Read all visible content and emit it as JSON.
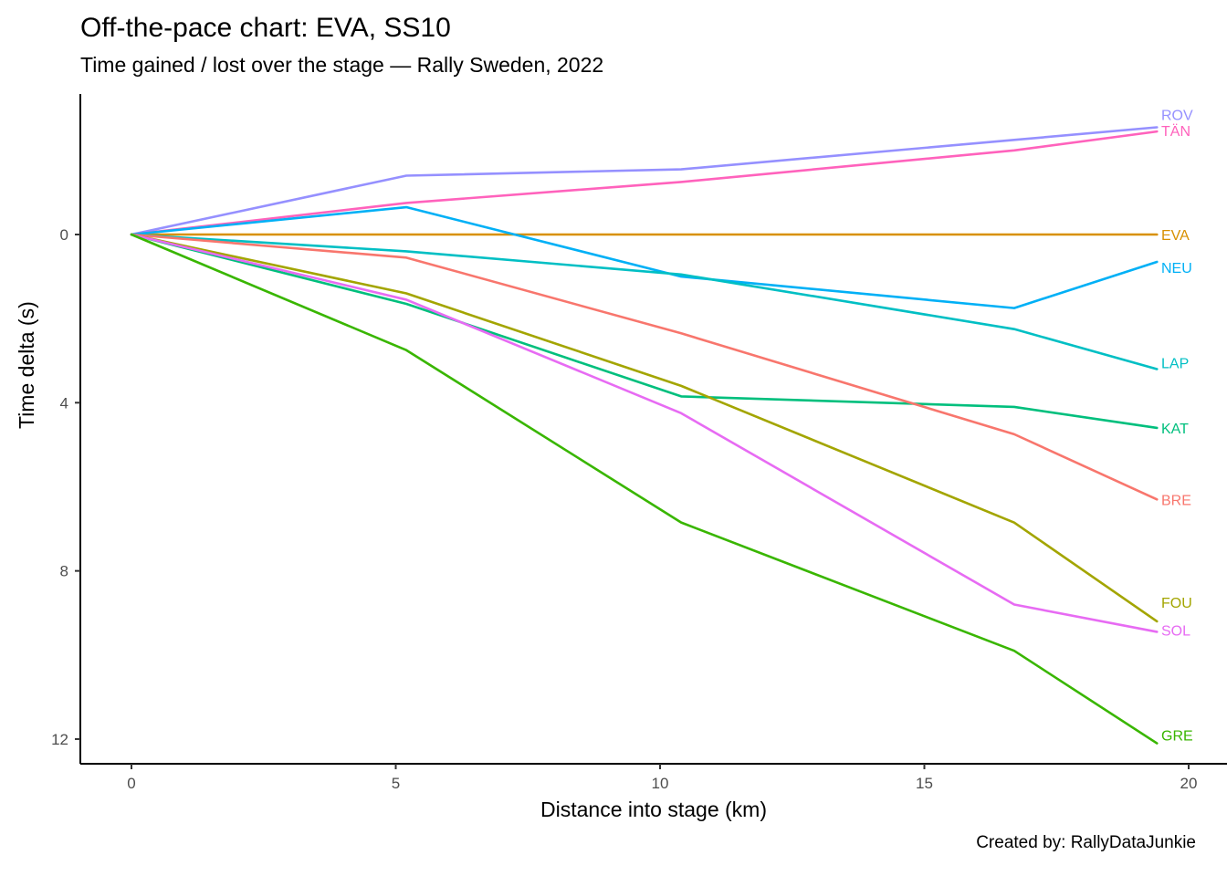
{
  "header": {
    "title": "Off-the-pace chart: EVA, SS10",
    "subtitle": "Time gained / lost over the stage — Rally Sweden, 2022"
  },
  "caption": "Created by: RallyDataJunkie",
  "chart_data": {
    "type": "line",
    "title": "Off-the-pace chart: EVA, SS10",
    "subtitle": "Time gained / lost over the stage — Rally Sweden, 2022",
    "xlabel": "Distance into stage (km)",
    "ylabel": "Time delta (s)",
    "x": [
      0,
      5.2,
      10.4,
      16.7,
      19.4
    ],
    "x_ticks": [
      "0",
      "5",
      "10",
      "15",
      "20"
    ],
    "x_tick_values": [
      0,
      5,
      10,
      15,
      20
    ],
    "y_ticks": [
      "0",
      "4",
      "8",
      "12"
    ],
    "y_tick_values": [
      0,
      4,
      8,
      12
    ],
    "xlim": [
      0,
      20.7
    ],
    "ylim": [
      -3.3,
      12.6
    ],
    "y_axis_inverted_note": "positive delta = time lost, plotted downward",
    "grid": false,
    "legend_position": "line-end-labels-right",
    "series": [
      {
        "name": "ROV",
        "color": "#9590FF",
        "values": [
          0,
          -1.4,
          -1.55,
          -2.25,
          -2.55
        ]
      },
      {
        "name": "TÄN",
        "color": "#FF62BC",
        "values": [
          0,
          -0.75,
          -1.25,
          -2.0,
          -2.45
        ]
      },
      {
        "name": "EVA",
        "color": "#D89000",
        "values": [
          0,
          0,
          0,
          0,
          0
        ]
      },
      {
        "name": "NEU",
        "color": "#00B0F6",
        "values": [
          0,
          -0.65,
          1.0,
          1.75,
          0.65
        ]
      },
      {
        "name": "LAP",
        "color": "#00BFC4",
        "values": [
          0,
          0.4,
          0.95,
          2.25,
          3.2
        ]
      },
      {
        "name": "KAT",
        "color": "#00BF7D",
        "values": [
          0,
          1.65,
          3.85,
          4.1,
          4.6
        ]
      },
      {
        "name": "BRE",
        "color": "#F8766D",
        "values": [
          0,
          0.55,
          2.35,
          4.75,
          6.3
        ]
      },
      {
        "name": "FOU",
        "color": "#A3A500",
        "values": [
          0,
          1.4,
          3.6,
          6.85,
          9.2
        ]
      },
      {
        "name": "SOL",
        "color": "#E76BF3",
        "values": [
          0,
          1.55,
          4.25,
          8.8,
          9.45
        ]
      },
      {
        "name": "GRE",
        "color": "#39B600",
        "values": [
          0,
          2.75,
          6.85,
          9.9,
          12.1
        ]
      }
    ]
  }
}
